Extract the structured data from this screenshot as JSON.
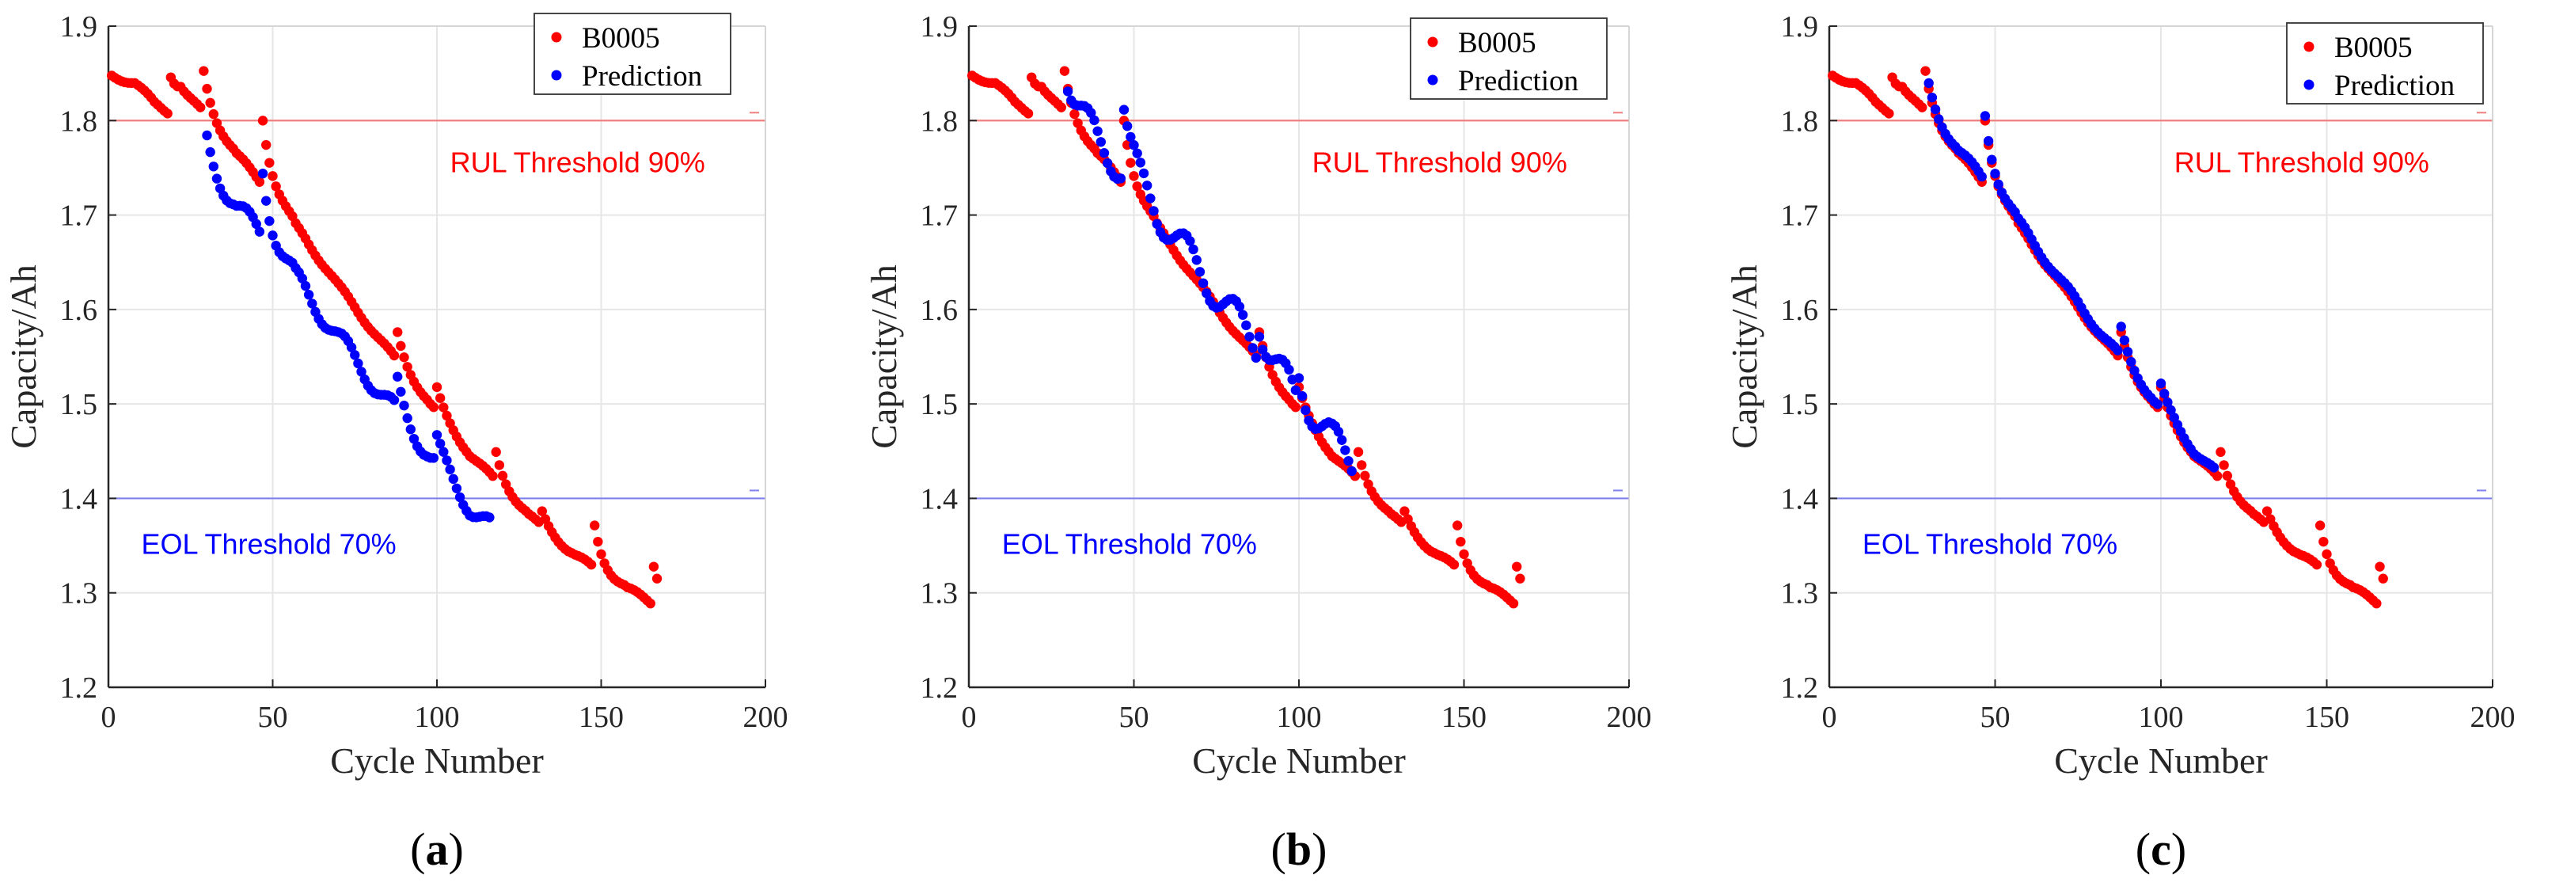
{
  "chart_data": [
    {
      "panel_label": "(a)",
      "label_letter": "a",
      "type": "scatter",
      "xlabel": "Cycle Number",
      "ylabel": "Capacity/Ah",
      "xlim": [
        0,
        200
      ],
      "ylim": [
        1.2,
        1.9
      ],
      "xticks": [
        0,
        50,
        100,
        150,
        200
      ],
      "yticks": [
        1.2,
        1.3,
        1.4,
        1.5,
        1.6,
        1.7,
        1.8,
        1.9
      ],
      "grid": true,
      "legend": "top-right",
      "thresholds": [
        {
          "name": "rul",
          "label": "RUL Threshold 90%",
          "value": 1.8,
          "color": "#f08080",
          "text_color": "#ff0000"
        },
        {
          "name": "eol",
          "label": "EOL Threshold 70%",
          "value": 1.4,
          "color": "#8080f0",
          "text_color": "#0000ff"
        }
      ],
      "series": [
        {
          "name": "B0005",
          "color": "#ff0000",
          "start": 1,
          "end": 167,
          "mode": "actual"
        },
        {
          "name": "Prediction",
          "color": "#0000ff",
          "start": 30,
          "end": 116,
          "mode": "pred",
          "offset": -0.055,
          "noise": 0.008
        }
      ]
    },
    {
      "panel_label": "(b)",
      "label_letter": "b",
      "type": "scatter",
      "xlabel": "Cycle Number",
      "ylabel": "Capacity/Ah",
      "xlim": [
        0,
        200
      ],
      "ylim": [
        1.2,
        1.9
      ],
      "xticks": [
        0,
        50,
        100,
        150,
        200
      ],
      "yticks": [
        1.2,
        1.3,
        1.4,
        1.5,
        1.6,
        1.7,
        1.8,
        1.9
      ],
      "grid": true,
      "legend": "top-right",
      "thresholds": [
        {
          "name": "rul",
          "label": "RUL Threshold 90%",
          "value": 1.8,
          "color": "#f08080",
          "text_color": "#ff0000"
        },
        {
          "name": "eol",
          "label": "EOL Threshold 70%",
          "value": 1.4,
          "color": "#8080f0",
          "text_color": "#0000ff"
        }
      ],
      "series": [
        {
          "name": "B0005",
          "color": "#ff0000",
          "start": 1,
          "end": 167,
          "mode": "actual"
        },
        {
          "name": "Prediction",
          "color": "#0000ff",
          "start": 30,
          "end": 116,
          "mode": "pred",
          "offset": 0.015,
          "noise": 0.02
        }
      ]
    },
    {
      "panel_label": "(c)",
      "label_letter": "c",
      "type": "scatter",
      "xlabel": "Cycle Number",
      "ylabel": "Capacity/Ah",
      "xlim": [
        0,
        200
      ],
      "ylim": [
        1.2,
        1.9
      ],
      "xticks": [
        0,
        50,
        100,
        150,
        200
      ],
      "yticks": [
        1.2,
        1.3,
        1.4,
        1.5,
        1.6,
        1.7,
        1.8,
        1.9
      ],
      "grid": true,
      "legend": "top-right",
      "thresholds": [
        {
          "name": "rul",
          "label": "RUL Threshold 90%",
          "value": 1.8,
          "color": "#f08080",
          "text_color": "#ff0000"
        },
        {
          "name": "eol",
          "label": "EOL Threshold 70%",
          "value": 1.4,
          "color": "#8080f0",
          "text_color": "#0000ff"
        }
      ],
      "series": [
        {
          "name": "B0005",
          "color": "#ff0000",
          "start": 1,
          "end": 167,
          "mode": "actual"
        },
        {
          "name": "Prediction",
          "color": "#0000ff",
          "start": 30,
          "end": 116,
          "mode": "pred",
          "offset": 0.004,
          "noise": 0.002
        }
      ]
    }
  ],
  "colors": {
    "grid": "#e6e6e6",
    "axis": "#262626",
    "text": "#262626"
  }
}
